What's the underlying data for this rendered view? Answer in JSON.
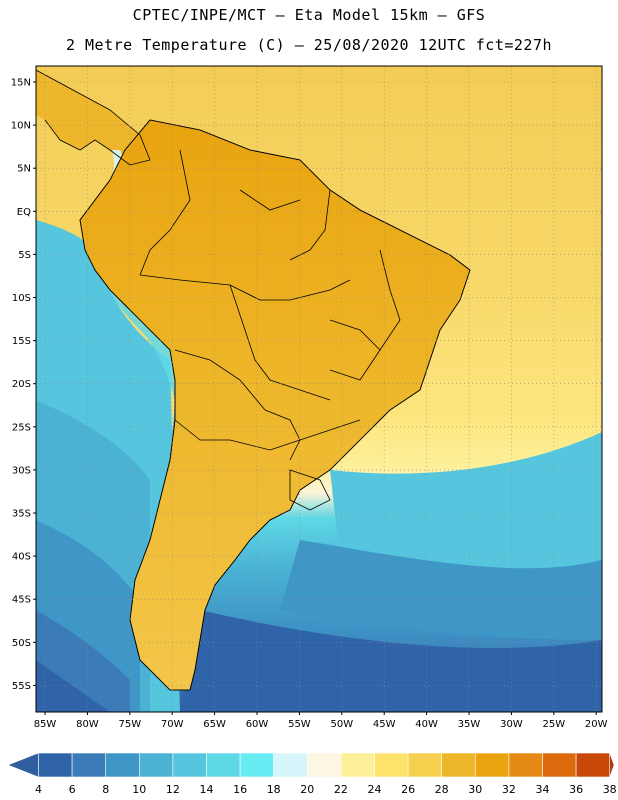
{
  "header": {
    "line1": "CPTEC/INPE/MCT –  Eta Model 15km – GFS",
    "line2": "2 Metre Temperature (C) – 25/08/2020 12UTC fct=227h"
  },
  "map": {
    "lat_labels": [
      "15N",
      "10N",
      "5N",
      "EQ",
      "5S",
      "10S",
      "15S",
      "20S",
      "25S",
      "30S",
      "35S",
      "40S",
      "45S",
      "50S",
      "55S"
    ],
    "lon_labels": [
      "85W",
      "80W",
      "75W",
      "70W",
      "65W",
      "60W",
      "55W",
      "50W",
      "45W",
      "40W",
      "35W",
      "30W",
      "25W",
      "20W"
    ],
    "grid": "dotted"
  },
  "colorbar": {
    "labels": [
      "4",
      "6",
      "8",
      "10",
      "12",
      "14",
      "16",
      "18",
      "20",
      "22",
      "24",
      "26",
      "28",
      "30",
      "32",
      "34",
      "36",
      "38"
    ],
    "low_color": "#2f5f9e",
    "high_color": "#b33a0a",
    "colors": [
      "#2f64a8",
      "#3a7bb8",
      "#3f97c7",
      "#4bb2d4",
      "#55c6dd",
      "#5fd8e6",
      "#66ecf2",
      "#d6f6fb",
      "#fdf6e3",
      "#fdf09a",
      "#fde36c",
      "#f6cf4e",
      "#eeb72b",
      "#e9a40f",
      "#e68a16",
      "#dd6a0d",
      "#c8480a"
    ]
  }
}
